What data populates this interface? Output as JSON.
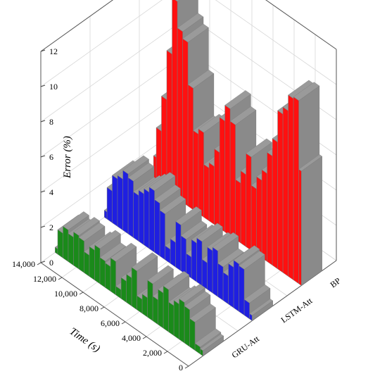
{
  "chart_data": {
    "type": "bar3d-waterfall",
    "title": "",
    "xlabel": "Time (s)",
    "ylabel": "",
    "zlabel": "Error (%)",
    "x_ticks": [
      "0",
      "2,000",
      "4,000",
      "6,000",
      "8,000",
      "10,000",
      "12,000",
      "14,000"
    ],
    "z_ticks": [
      "0",
      "2",
      "4",
      "6",
      "8",
      "10",
      "12"
    ],
    "xlim": [
      0,
      14000
    ],
    "zlim": [
      0,
      12
    ],
    "grid": true,
    "series": [
      {
        "name": "GRU-Att",
        "color": "#1a8a1a",
        "x": [
          0,
          500,
          1000,
          1500,
          2000,
          2500,
          3000,
          3500,
          4000,
          4500,
          5000,
          5500,
          6000,
          6500,
          7000,
          7500,
          8000,
          8500,
          9000,
          9500,
          10000,
          10500,
          11000,
          11500,
          12000,
          12500,
          13000,
          13500,
          14000
        ],
        "values": [
          0.3,
          0.4,
          1.6,
          2.1,
          2.3,
          2.0,
          1.7,
          2.4,
          2.0,
          1.4,
          2.1,
          1.1,
          0.8,
          2.2,
          1.6,
          1.2,
          0.5,
          1.9,
          1.4,
          1.5,
          2.0,
          1.7,
          1.2,
          1.8,
          1.9,
          1.6,
          1.8,
          1.4,
          0.3
        ]
      },
      {
        "name": "LSTM-Att",
        "color": "#1f1fe0",
        "x": [
          0,
          500,
          1000,
          1500,
          2000,
          2500,
          3000,
          3500,
          4000,
          4500,
          5000,
          5500,
          6000,
          6500,
          7000,
          7500,
          8000,
          8500,
          9000,
          9500,
          10000,
          10500,
          11000,
          11500,
          12000,
          12500,
          13000,
          13500,
          14000
        ],
        "values": [
          0.3,
          0.9,
          2.6,
          2.7,
          2.3,
          1.6,
          1.9,
          2.6,
          2.4,
          1.5,
          2.5,
          2.2,
          1.2,
          2.0,
          2.6,
          1.4,
          0.8,
          2.6,
          3.0,
          3.5,
          3.2,
          2.9,
          2.6,
          3.2,
          3.4,
          2.9,
          2.7,
          1.8,
          0.4
        ]
      },
      {
        "name": "BP",
        "color": "#ff1010",
        "x": [
          0,
          500,
          1000,
          1500,
          2000,
          2500,
          3000,
          3500,
          4000,
          4500,
          5000,
          5500,
          6000,
          6500,
          7000,
          7500,
          8000,
          8500,
          9000,
          9500,
          10000,
          10500,
          11000,
          11500,
          12000,
          12500,
          13000,
          13500,
          14000
        ],
        "values": [
          6.5,
          10.4,
          10.3,
          9.4,
          9.0,
          7.2,
          6.2,
          5.0,
          4.4,
          3.7,
          5.3,
          4.1,
          3.4,
          6.5,
          7.2,
          6.3,
          4.3,
          3.3,
          3.0,
          4.8,
          4.5,
          6.9,
          9.3,
          9.7,
          11.2,
          8.0,
          5.2,
          3.2,
          1.5
        ]
      }
    ]
  }
}
